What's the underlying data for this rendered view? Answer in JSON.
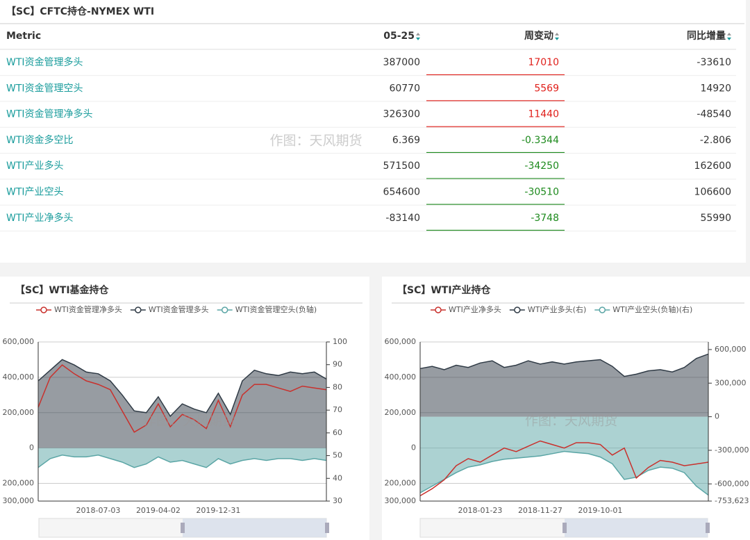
{
  "table": {
    "title": "【SC】CFTC持仓-NYMEX WTI",
    "headers": [
      "Metric",
      "05-25",
      "周变动",
      "同比增量"
    ],
    "rows": [
      [
        "WTI资金管理多头",
        387000,
        17010,
        -33610
      ],
      [
        "WTI资金管理空头",
        60770,
        5569,
        14920
      ],
      [
        "WTI资金管理净多头",
        326300,
        11440,
        -48540
      ],
      [
        "WTI资金多空比",
        6.369,
        -0.3344,
        -2.806
      ],
      [
        "WTI产业多头",
        571500,
        -34250,
        162600
      ],
      [
        "WTI产业空头",
        654600,
        -30510,
        106600
      ],
      [
        "WTI产业净多头",
        -83140,
        -3748,
        55990
      ]
    ],
    "watermark": "作图：天风期货"
  },
  "chart_data": [
    {
      "type": "line",
      "title": "【SC】WTI基金持仓",
      "watermark": "作图：天风期货",
      "categories": [
        null,
        null,
        null,
        null,
        null,
        "2018-07-03",
        null,
        null,
        null,
        null,
        "2019-04-02",
        null,
        null,
        null,
        null,
        "2019-12-31",
        null,
        null,
        null,
        null,
        null,
        null,
        null,
        null,
        null
      ],
      "ylim": [
        -300000,
        600000
      ],
      "yticks": [
        {
          "value": 600000,
          "label": "600,000"
        },
        {
          "value": 400000,
          "label": "400,000"
        },
        {
          "value": 200000,
          "label": "200,000"
        },
        0,
        {
          "value": -200000,
          "label": "200,000"
        },
        {
          "value": -300000,
          "label": "300,000"
        }
      ],
      "y2lim": [
        30,
        100
      ],
      "y2ticks": [
        100,
        90,
        80,
        70,
        60,
        50,
        40,
        30
      ],
      "grid": true,
      "series": [
        {
          "name": "WTI资金管理多头",
          "type": "area",
          "color": "#2f3a45",
          "values": [
            380000,
            440000,
            500000,
            470000,
            430000,
            420000,
            380000,
            300000,
            210000,
            200000,
            290000,
            180000,
            250000,
            220000,
            200000,
            310000,
            190000,
            380000,
            440000,
            420000,
            410000,
            430000,
            420000,
            430000,
            390000
          ]
        },
        {
          "name": "WTI资金管理空头(负轴)",
          "type": "area",
          "color": "#5aa5a5",
          "values": [
            -110000,
            -60000,
            -40000,
            -50000,
            -50000,
            -40000,
            -60000,
            -80000,
            -110000,
            -90000,
            -50000,
            -80000,
            -70000,
            -90000,
            -110000,
            -60000,
            -90000,
            -70000,
            -60000,
            -70000,
            -60000,
            -60000,
            -70000,
            -60000,
            -70000
          ]
        },
        {
          "name": "WTI资金管理净多头",
          "type": "line",
          "color": "#c9302c",
          "values": [
            230000,
            400000,
            470000,
            420000,
            380000,
            360000,
            330000,
            210000,
            90000,
            130000,
            250000,
            120000,
            190000,
            160000,
            110000,
            270000,
            120000,
            300000,
            360000,
            360000,
            340000,
            320000,
            350000,
            340000,
            330000
          ]
        }
      ],
      "legend_order": [
        2,
        0,
        1
      ]
    },
    {
      "type": "line",
      "title": "【SC】WTI产业持仓",
      "watermark": "作图：天风期货",
      "categories": [
        null,
        null,
        null,
        null,
        null,
        "2018-01-23",
        null,
        null,
        null,
        null,
        "2018-11-27",
        null,
        null,
        null,
        null,
        "2019-10-01",
        null,
        null,
        null,
        null,
        null,
        null,
        null,
        null,
        null
      ],
      "ylim": [
        -300000,
        600000
      ],
      "yticks": [
        {
          "value": 600000,
          "label": "600,000"
        },
        {
          "value": 400000,
          "label": "400,000"
        },
        {
          "value": 200000,
          "label": "200,000"
        },
        0,
        {
          "value": -200000,
          "label": "200,000"
        },
        {
          "value": -300000,
          "label": "300,000"
        }
      ],
      "y2lim": [
        -753623,
        668000
      ],
      "y2ticks": [
        {
          "value": 600000,
          "label": "600,000"
        },
        {
          "value": 300000,
          "label": "300,000"
        },
        0,
        {
          "value": -300000,
          "label": "-300,000"
        },
        {
          "value": -600000,
          "label": "-600,000"
        },
        {
          "value": -753623,
          "label": "-753,623"
        }
      ],
      "grid": true,
      "series": [
        {
          "name": "WTI产业多头(右)",
          "type": "area",
          "axis": "y2",
          "color": "#2f3a45",
          "values": [
            430000,
            450000,
            420000,
            460000,
            440000,
            480000,
            500000,
            440000,
            460000,
            500000,
            470000,
            490000,
            470000,
            490000,
            500000,
            510000,
            450000,
            360000,
            380000,
            410000,
            420000,
            400000,
            440000,
            520000,
            560000
          ]
        },
        {
          "name": "WTI产业空头(负轴)(右)",
          "type": "area",
          "axis": "y2",
          "color": "#5aa5a5",
          "values": [
            -680000,
            -620000,
            -560000,
            -500000,
            -450000,
            -430000,
            -400000,
            -380000,
            -370000,
            -360000,
            -350000,
            -330000,
            -310000,
            -320000,
            -330000,
            -360000,
            -420000,
            -560000,
            -540000,
            -480000,
            -450000,
            -460000,
            -500000,
            -620000,
            -700000
          ]
        },
        {
          "name": "WTI产业净多头",
          "type": "line",
          "color": "#c9302c",
          "values": [
            -270000,
            -230000,
            -180000,
            -100000,
            -60000,
            -80000,
            -40000,
            0,
            -20000,
            10000,
            40000,
            20000,
            0,
            30000,
            30000,
            20000,
            -40000,
            0,
            -170000,
            -110000,
            -70000,
            -80000,
            -100000,
            -90000,
            -80000
          ]
        }
      ],
      "legend_order": [
        2,
        0,
        1
      ]
    }
  ]
}
